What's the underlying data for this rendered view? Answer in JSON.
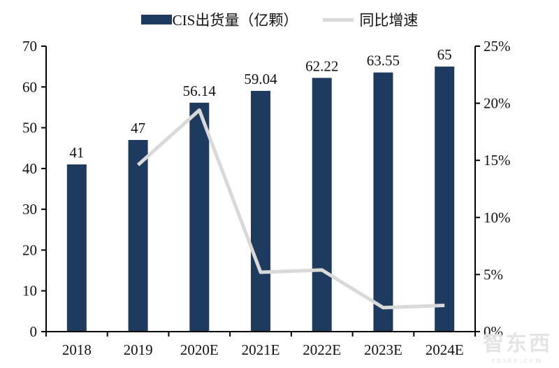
{
  "chart_data": {
    "type": "bar+line",
    "categories": [
      "2018",
      "2019",
      "2020E",
      "2021E",
      "2022E",
      "2023E",
      "2024E"
    ],
    "series": [
      {
        "name": "CIS出货量（亿颗）",
        "type": "bar",
        "axis": "left",
        "color": "#1f3a5f",
        "values": [
          41,
          47,
          56.14,
          59.04,
          62.22,
          63.55,
          65
        ],
        "labels": [
          "41",
          "47",
          "56.14",
          "59.04",
          "62.22",
          "63.55",
          "65"
        ]
      },
      {
        "name": "同比增速",
        "type": "line",
        "axis": "right",
        "color": "#d9d9d9",
        "values": [
          null,
          14.6,
          19.4,
          5.2,
          5.4,
          2.1,
          2.3
        ]
      }
    ],
    "left_axis": {
      "min": 0,
      "max": 70,
      "step": 10,
      "tick_labels": [
        "0",
        "10",
        "20",
        "30",
        "40",
        "50",
        "60",
        "70"
      ]
    },
    "right_axis": {
      "min": 0,
      "max": 25,
      "step": 5,
      "tick_labels": [
        "0%",
        "5%",
        "10%",
        "15%",
        "20%",
        "25%"
      ]
    },
    "legend_position": "top",
    "grid": false
  },
  "watermark": {
    "title": "智东西",
    "subtitle": "zhidx.com"
  }
}
